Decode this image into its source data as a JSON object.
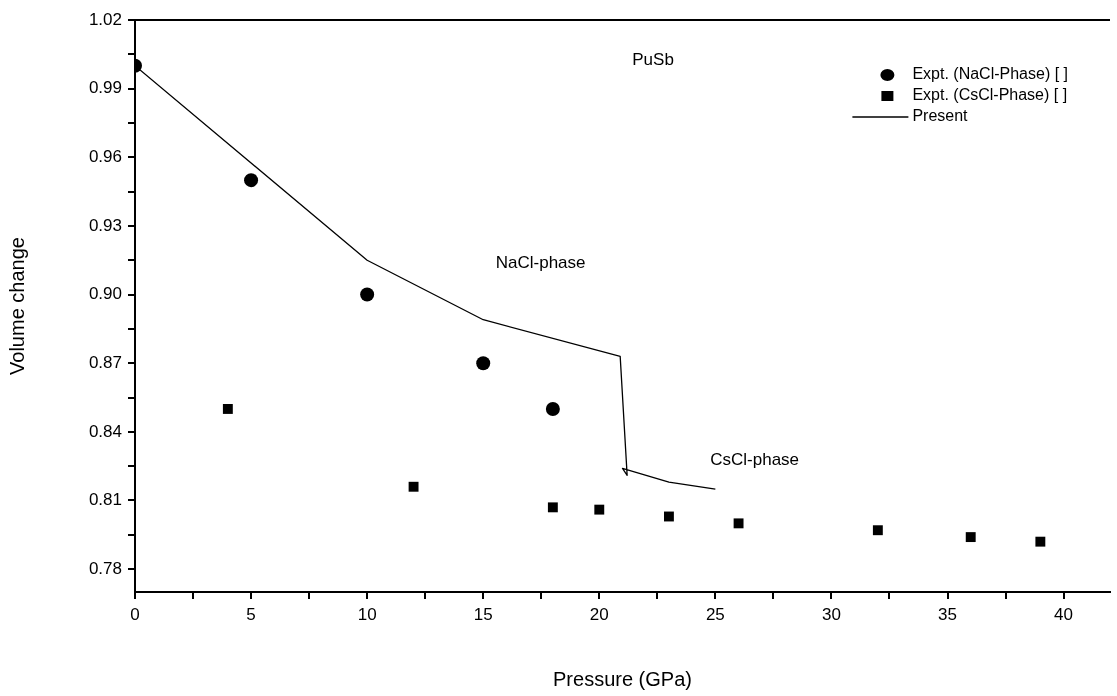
{
  "chart_data": {
    "type": "scatter",
    "xlabel": "Pressure (GPa)",
    "ylabel": "Volume change",
    "annotations": [
      "PuSb",
      "NaCl-phase",
      "CsCl-phase"
    ],
    "xlim": [
      0,
      42
    ],
    "ylim": [
      0.77,
      1.02
    ],
    "xticks": [
      0,
      {
        "value": 2.5,
        "label": null
      },
      5,
      {
        "value": 7.5,
        "label": null
      },
      10,
      {
        "value": 12.5,
        "label": null
      },
      15,
      {
        "value": 17.5,
        "label": null
      },
      20,
      {
        "value": 22.5,
        "label": null
      },
      25,
      {
        "value": 27.5,
        "label": null
      },
      30,
      {
        "value": 32.5,
        "label": null
      },
      35,
      {
        "value": 37.5,
        "label": null
      },
      40
    ],
    "yticks": [
      {
        "value": 0.78,
        "label": "0.78"
      },
      {
        "value": 0.795,
        "label": null
      },
      {
        "value": 0.81,
        "label": "0.81"
      },
      {
        "value": 0.825,
        "label": null
      },
      {
        "value": 0.84,
        "label": "0.84"
      },
      {
        "value": 0.855,
        "label": null
      },
      {
        "value": 0.87,
        "label": "0.87"
      },
      {
        "value": 0.885,
        "label": null
      },
      {
        "value": 0.9,
        "label": "0.90"
      },
      {
        "value": 0.915,
        "label": null
      },
      {
        "value": 0.93,
        "label": "0.93"
      },
      {
        "value": 0.945,
        "label": null
      },
      {
        "value": 0.96,
        "label": "0.96"
      },
      {
        "value": 0.975,
        "label": null
      },
      {
        "value": 0.99,
        "label": "0.99"
      },
      {
        "value": 1.005,
        "label": null
      },
      {
        "value": 1.02,
        "label": "1.02"
      }
    ],
    "legend": "top right",
    "grid": false,
    "series": [
      {
        "name": "Expt. (NaCl-Phase) [ ]",
        "color": "#000000",
        "marker": "circle",
        "x": [
          0,
          5,
          10,
          15,
          18
        ],
        "values": [
          1.0,
          0.95,
          0.9,
          0.87,
          0.85
        ]
      },
      {
        "name": "Expt. (CsCl-Phase) [ ]",
        "color": "#000000",
        "marker": "square",
        "x": [
          4,
          12,
          18,
          20,
          23,
          26,
          32,
          36,
          39
        ],
        "values": [
          0.85,
          0.816,
          0.807,
          0.806,
          0.803,
          0.8,
          0.797,
          0.794,
          0.792
        ]
      },
      {
        "name": "Present",
        "type": "line",
        "color": "#000000",
        "marker": "none",
        "line_style": "solid",
        "x": [
          0,
          10,
          15,
          20.9,
          21.2,
          21.0,
          23,
          25
        ],
        "values": [
          1.0,
          0.915,
          0.889,
          0.873,
          0.821,
          0.824,
          0.818,
          0.815
        ]
      }
    ]
  }
}
